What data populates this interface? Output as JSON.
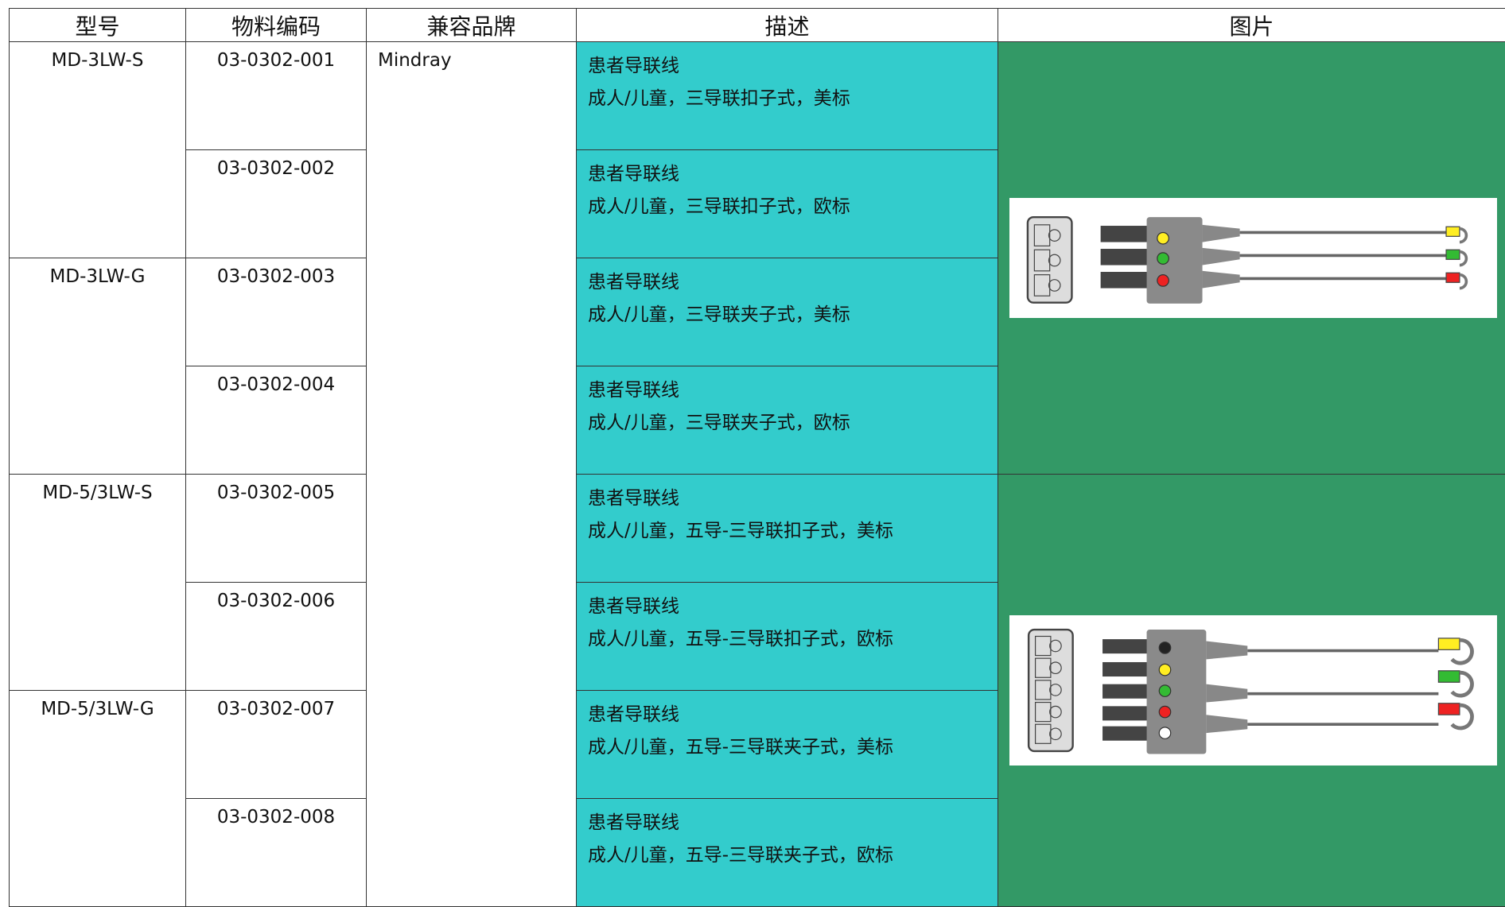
{
  "header": {
    "columns": [
      "型号",
      "物料编码",
      "兼容品牌",
      "描述",
      "图片"
    ]
  },
  "models": [
    "MD-3LW-S",
    "MD-3LW-G",
    "MD-5/3LW-S",
    "MD-5/3LW-G"
  ],
  "brand": "Mindray",
  "rows": [
    {
      "code": "03-0302-001",
      "title": "患者导联线",
      "detail": "成人/儿童，三导联扣子式，美标"
    },
    {
      "code": "03-0302-002",
      "title": "患者导联线",
      "detail": "成人/儿童，三导联扣子式，欧标"
    },
    {
      "code": "03-0302-003",
      "title": "患者导联线",
      "detail": "成人/儿童，三导联夹子式，美标"
    },
    {
      "code": "03-0302-004",
      "title": "患者导联线",
      "detail": "成人/儿童，三导联夹子式，欧标"
    },
    {
      "code": "03-0302-005",
      "title": "患者导联线",
      "detail": "成人/儿童，五导-三导联扣子式，美标"
    },
    {
      "code": "03-0302-006",
      "title": "患者导联线",
      "detail": "成人/儿童，五导-三导联扣子式，欧标"
    },
    {
      "code": "03-0302-007",
      "title": "患者导联线",
      "detail": "成人/儿童，五导-三导联夹子式，美标"
    },
    {
      "code": "03-0302-008",
      "title": "患者导联线",
      "detail": "成人/儿童，五导-三导联夹子式，欧标"
    }
  ]
}
